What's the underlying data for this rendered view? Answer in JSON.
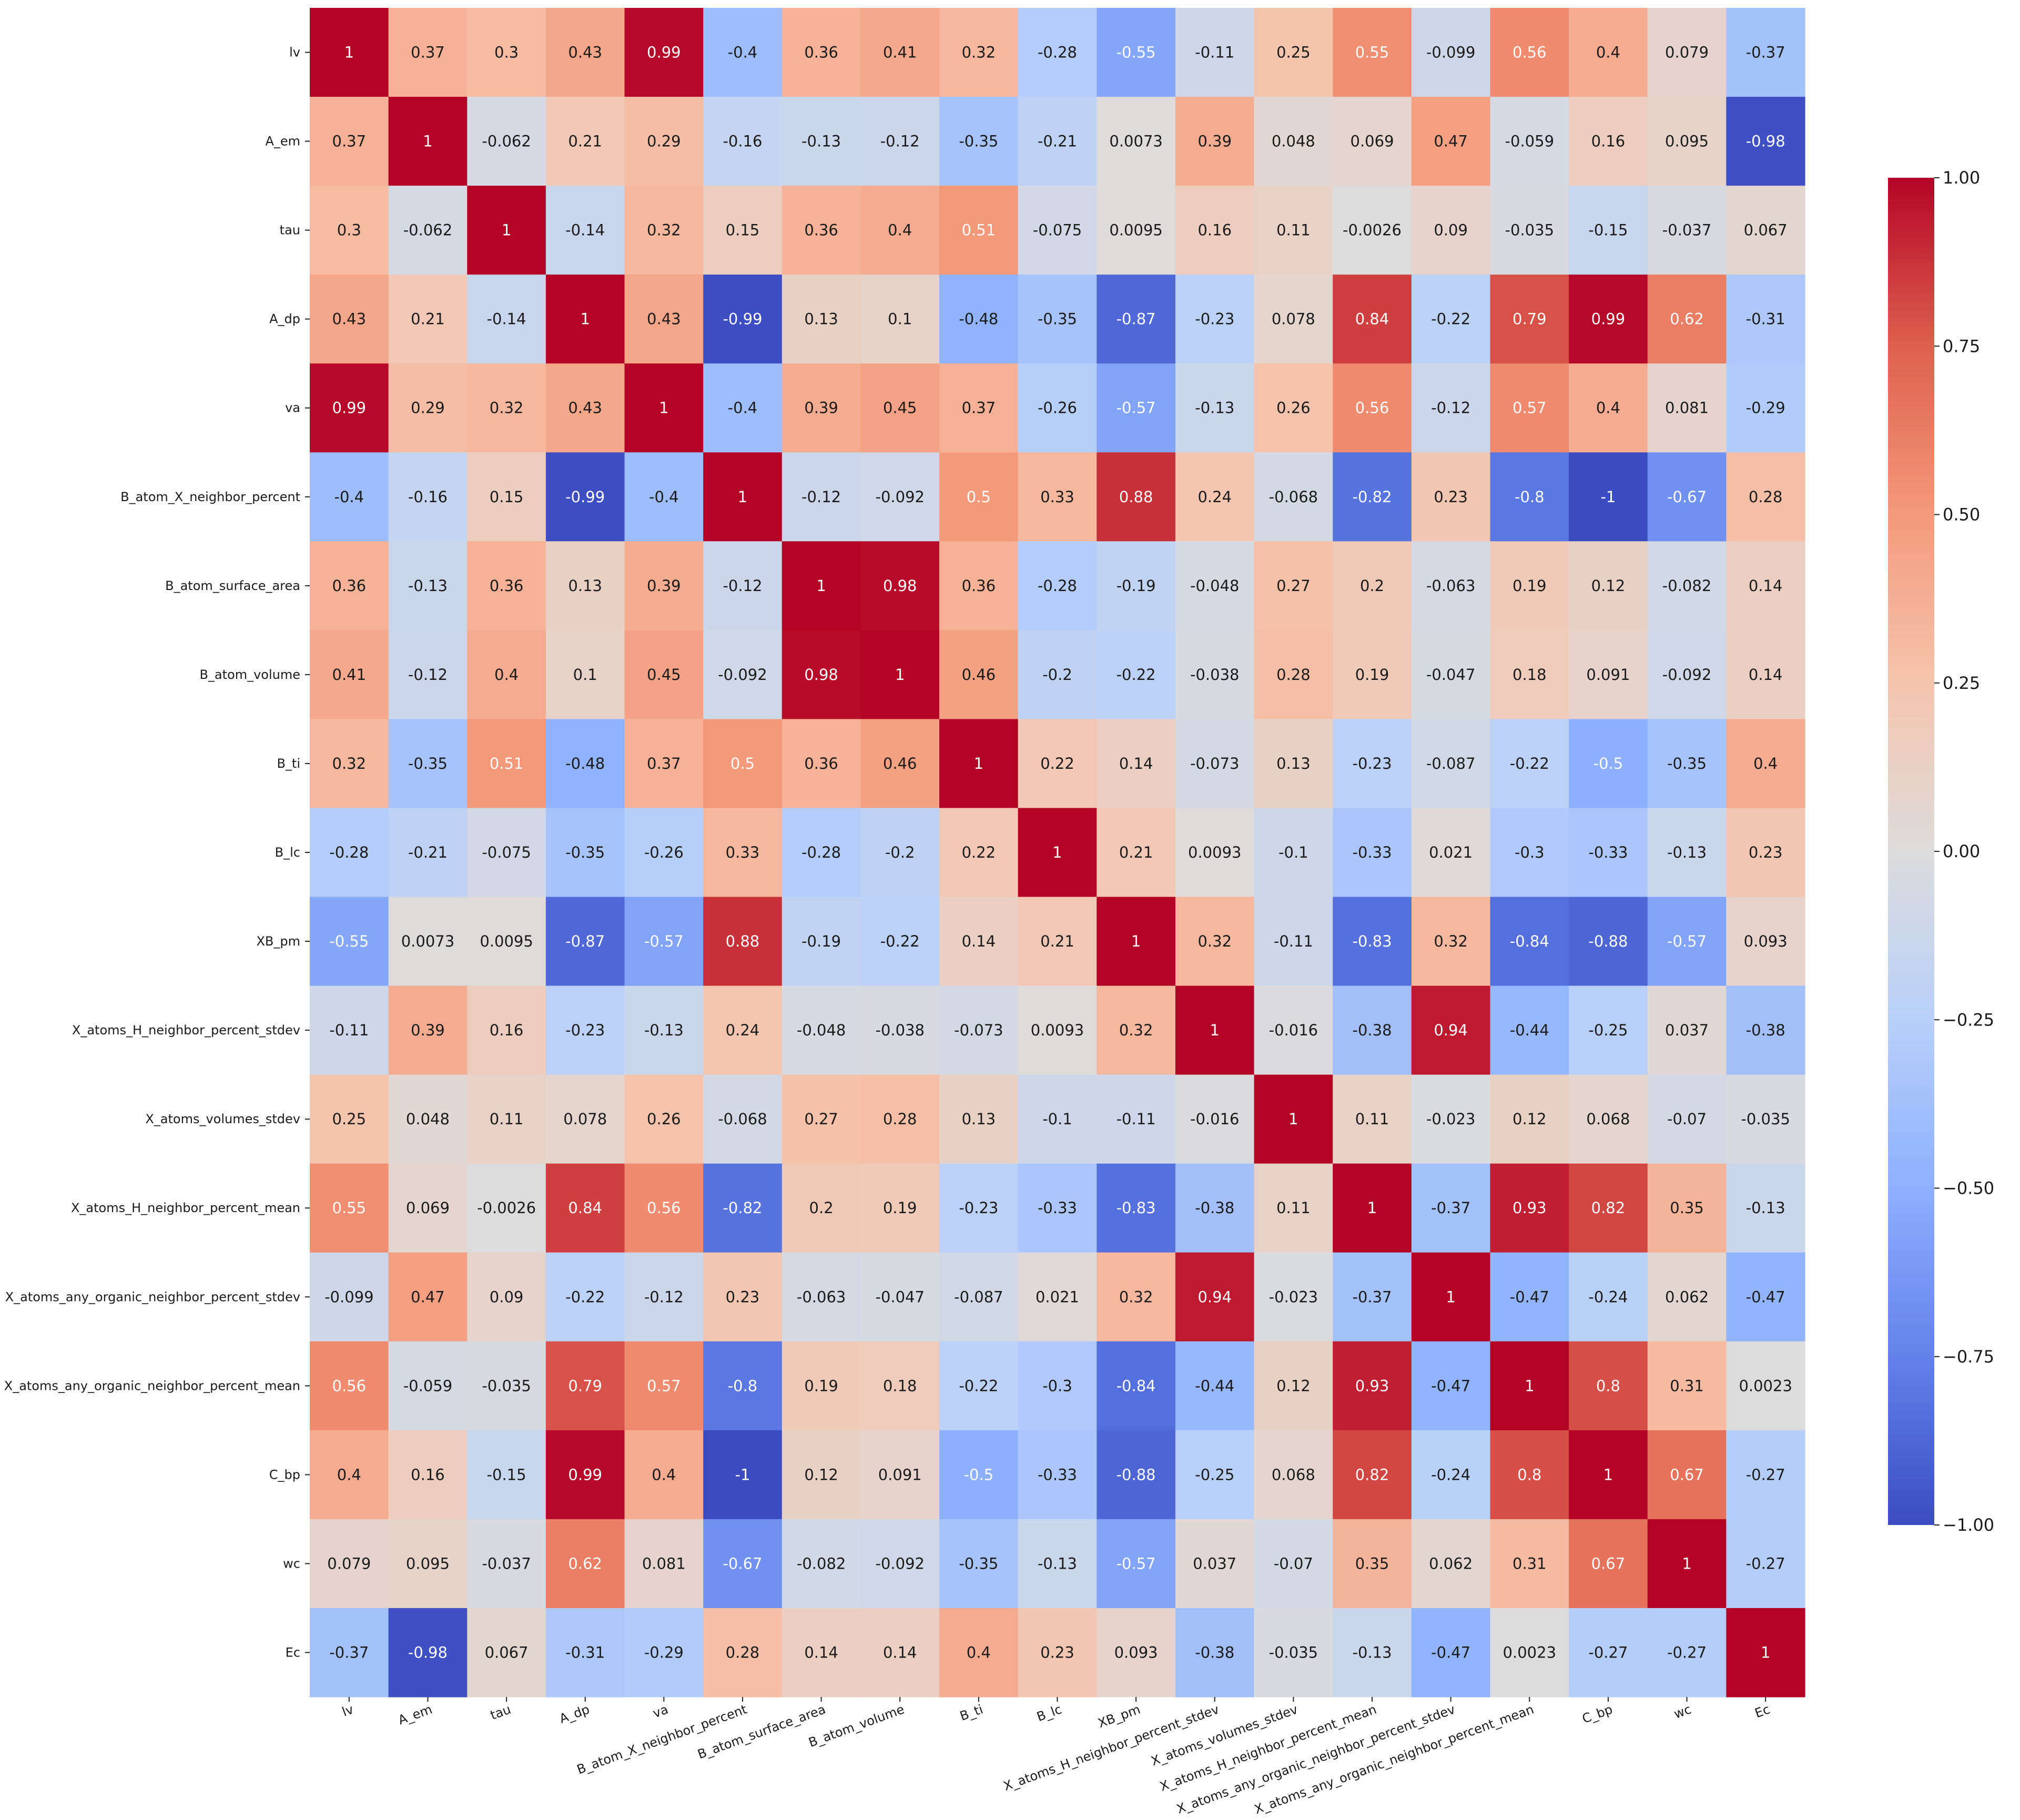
{
  "chart_data": {
    "type": "heatmap",
    "title": "",
    "xlabel": "",
    "ylabel": "",
    "colormap": "coolwarm",
    "vmin": -1,
    "vmax": 1,
    "colorbar_ticks": [
      1.0,
      0.75,
      0.5,
      0.25,
      0.0,
      -0.25,
      -0.5,
      -0.75,
      -1.0
    ],
    "colorbar_tick_labels": [
      "1.00",
      "0.75",
      "0.50",
      "0.25",
      "0.00",
      "−0.25",
      "−0.50",
      "−0.75",
      "−1.00"
    ],
    "labels": [
      "lv",
      "A_em",
      "tau",
      "A_dp",
      "va",
      "B_atom_X_neighbor_percent",
      "B_atom_surface_area",
      "B_atom_volume",
      "B_ti",
      "B_lc",
      "XB_pm",
      "X_atoms_H_neighbor_percent_stdev",
      "X_atoms_volumes_stdev",
      "X_atoms_H_neighbor_percent_mean",
      "X_atoms_any_organic_neighbor_percent_stdev",
      "X_atoms_any_organic_neighbor_percent_mean",
      "C_bp",
      "wc",
      "Ec"
    ],
    "values": [
      [
        1,
        0.37,
        0.3,
        0.43,
        0.99,
        -0.4,
        0.36,
        0.41,
        0.32,
        -0.28,
        -0.55,
        -0.11,
        0.25,
        0.55,
        -0.099,
        0.56,
        0.4,
        0.079,
        -0.37
      ],
      [
        0.37,
        1,
        -0.062,
        0.21,
        0.29,
        -0.16,
        -0.13,
        -0.12,
        -0.35,
        -0.21,
        0.0073,
        0.39,
        0.048,
        0.069,
        0.47,
        -0.059,
        0.16,
        0.095,
        -0.98
      ],
      [
        0.3,
        -0.062,
        1,
        -0.14,
        0.32,
        0.15,
        0.36,
        0.4,
        0.51,
        -0.075,
        0.0095,
        0.16,
        0.11,
        -0.0026,
        0.09,
        -0.035,
        -0.15,
        -0.037,
        0.067
      ],
      [
        0.43,
        0.21,
        -0.14,
        1,
        0.43,
        -0.99,
        0.13,
        0.1,
        -0.48,
        -0.35,
        -0.87,
        -0.23,
        0.078,
        0.84,
        -0.22,
        0.79,
        0.99,
        0.62,
        -0.31
      ],
      [
        0.99,
        0.29,
        0.32,
        0.43,
        1,
        -0.4,
        0.39,
        0.45,
        0.37,
        -0.26,
        -0.57,
        -0.13,
        0.26,
        0.56,
        -0.12,
        0.57,
        0.4,
        0.081,
        -0.29
      ],
      [
        -0.4,
        -0.16,
        0.15,
        -0.99,
        -0.4,
        1,
        -0.12,
        -0.092,
        0.5,
        0.33,
        0.88,
        0.24,
        -0.068,
        -0.82,
        0.23,
        -0.8,
        -1,
        -0.67,
        0.28
      ],
      [
        0.36,
        -0.13,
        0.36,
        0.13,
        0.39,
        -0.12,
        1,
        0.98,
        0.36,
        -0.28,
        -0.19,
        -0.048,
        0.27,
        0.2,
        -0.063,
        0.19,
        0.12,
        -0.082,
        0.14
      ],
      [
        0.41,
        -0.12,
        0.4,
        0.1,
        0.45,
        -0.092,
        0.98,
        1,
        0.46,
        -0.2,
        -0.22,
        -0.038,
        0.28,
        0.19,
        -0.047,
        0.18,
        0.091,
        -0.092,
        0.14
      ],
      [
        0.32,
        -0.35,
        0.51,
        -0.48,
        0.37,
        0.5,
        0.36,
        0.46,
        1,
        0.22,
        0.14,
        -0.073,
        0.13,
        -0.23,
        -0.087,
        -0.22,
        -0.5,
        -0.35,
        0.4
      ],
      [
        -0.28,
        -0.21,
        -0.075,
        -0.35,
        -0.26,
        0.33,
        -0.28,
        -0.2,
        0.22,
        1,
        0.21,
        0.0093,
        -0.1,
        -0.33,
        0.021,
        -0.3,
        -0.33,
        -0.13,
        0.23
      ],
      [
        -0.55,
        0.0073,
        0.0095,
        -0.87,
        -0.57,
        0.88,
        -0.19,
        -0.22,
        0.14,
        0.21,
        1,
        0.32,
        -0.11,
        -0.83,
        0.32,
        -0.84,
        -0.88,
        -0.57,
        0.093
      ],
      [
        -0.11,
        0.39,
        0.16,
        -0.23,
        -0.13,
        0.24,
        -0.048,
        -0.038,
        -0.073,
        0.0093,
        0.32,
        1,
        -0.016,
        -0.38,
        0.94,
        -0.44,
        -0.25,
        0.037,
        -0.38
      ],
      [
        0.25,
        0.048,
        0.11,
        0.078,
        0.26,
        -0.068,
        0.27,
        0.28,
        0.13,
        -0.1,
        -0.11,
        -0.016,
        1,
        0.11,
        -0.023,
        0.12,
        0.068,
        -0.07,
        -0.035
      ],
      [
        0.55,
        0.069,
        -0.0026,
        0.84,
        0.56,
        -0.82,
        0.2,
        0.19,
        -0.23,
        -0.33,
        -0.83,
        -0.38,
        0.11,
        1,
        -0.37,
        0.93,
        0.82,
        0.35,
        -0.13
      ],
      [
        -0.099,
        0.47,
        0.09,
        -0.22,
        -0.12,
        0.23,
        -0.063,
        -0.047,
        -0.087,
        0.021,
        0.32,
        0.94,
        -0.023,
        -0.37,
        1,
        -0.47,
        -0.24,
        0.062,
        -0.47
      ],
      [
        0.56,
        -0.059,
        -0.035,
        0.79,
        0.57,
        -0.8,
        0.19,
        0.18,
        -0.22,
        -0.3,
        -0.84,
        -0.44,
        0.12,
        0.93,
        -0.47,
        1,
        0.8,
        0.31,
        0.0023
      ],
      [
        0.4,
        0.16,
        -0.15,
        0.99,
        0.4,
        -1,
        0.12,
        0.091,
        -0.5,
        -0.33,
        -0.88,
        -0.25,
        0.068,
        0.82,
        -0.24,
        0.8,
        1,
        0.67,
        -0.27
      ],
      [
        0.079,
        0.095,
        -0.037,
        0.62,
        0.081,
        -0.67,
        -0.082,
        -0.092,
        -0.35,
        -0.13,
        -0.57,
        0.037,
        -0.07,
        0.35,
        0.062,
        0.31,
        0.67,
        1,
        -0.27
      ],
      [
        -0.37,
        -0.98,
        0.067,
        -0.31,
        -0.29,
        0.28,
        0.14,
        0.14,
        0.4,
        0.23,
        0.093,
        -0.38,
        -0.035,
        -0.13,
        -0.47,
        0.0023,
        -0.27,
        -0.27,
        1
      ]
    ],
    "colors": {
      "low": "#3b4cc0",
      "mid": "#dddcdc",
      "high": "#b40426"
    }
  }
}
